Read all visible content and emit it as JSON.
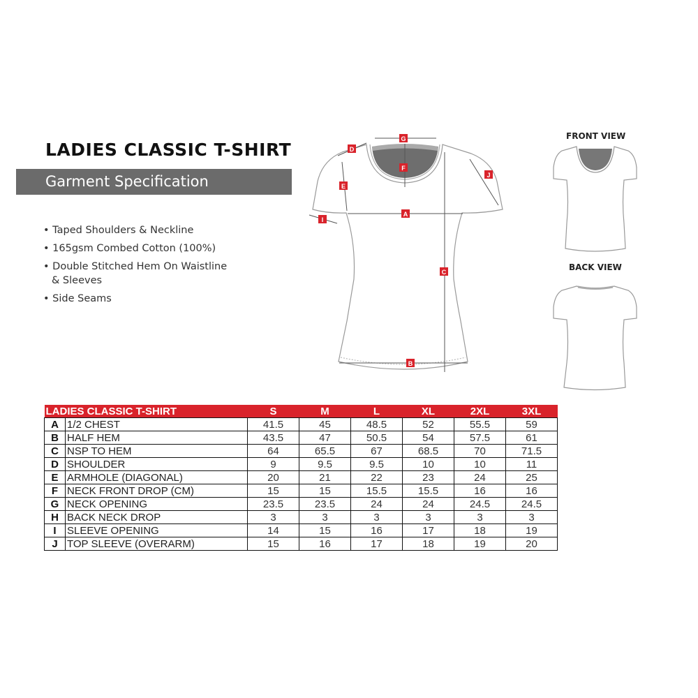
{
  "title": "LADIES CLASSIC T-SHIRT",
  "subtitle": "Garment Specification",
  "features": [
    "• Taped Shoulders & Neckline",
    "• 165gsm Combed Cotton (100%)",
    "• Double Stitched Hem On Waistline & Sleeves",
    "• Side Seams"
  ],
  "views": {
    "front": "FRONT VIEW",
    "back": "BACK VIEW"
  },
  "diagram_labels": [
    "A",
    "B",
    "C",
    "D",
    "E",
    "F",
    "G",
    "I",
    "J"
  ],
  "colors": {
    "accent": "#d9232b",
    "subtitle_bar": "#6b6b6b",
    "neck_fill": "#6e6e6e"
  },
  "table": {
    "header": "LADIES CLASSIC T-SHIRT",
    "sizes": [
      "S",
      "M",
      "L",
      "XL",
      "2XL",
      "3XL"
    ],
    "rows": [
      {
        "code": "A",
        "name": "1/2 CHEST",
        "values": [
          "41.5",
          "45",
          "48.5",
          "52",
          "55.5",
          "59"
        ]
      },
      {
        "code": "B",
        "name": "HALF HEM",
        "values": [
          "43.5",
          "47",
          "50.5",
          "54",
          "57.5",
          "61"
        ]
      },
      {
        "code": "C",
        "name": "NSP TO HEM",
        "values": [
          "64",
          "65.5",
          "67",
          "68.5",
          "70",
          "71.5"
        ]
      },
      {
        "code": "D",
        "name": "SHOULDER",
        "values": [
          "9",
          "9.5",
          "9.5",
          "10",
          "10",
          "11"
        ]
      },
      {
        "code": "E",
        "name": "ARMHOLE (DIAGONAL)",
        "values": [
          "20",
          "21",
          "22",
          "23",
          "24",
          "25"
        ]
      },
      {
        "code": "F",
        "name": "NECK FRONT DROP (CM)",
        "values": [
          "15",
          "15",
          "15.5",
          "15.5",
          "16",
          "16"
        ]
      },
      {
        "code": "G",
        "name": "NECK OPENING",
        "values": [
          "23.5",
          "23.5",
          "24",
          "24",
          "24.5",
          "24.5"
        ]
      },
      {
        "code": "H",
        "name": "BACK NECK DROP",
        "values": [
          "3",
          "3",
          "3",
          "3",
          "3",
          "3"
        ]
      },
      {
        "code": "I",
        "name": "SLEEVE OPENING",
        "values": [
          "14",
          "15",
          "16",
          "17",
          "18",
          "19"
        ]
      },
      {
        "code": "J",
        "name": "TOP SLEEVE (OVERARM)",
        "values": [
          "15",
          "16",
          "17",
          "18",
          "19",
          "20"
        ]
      }
    ]
  }
}
